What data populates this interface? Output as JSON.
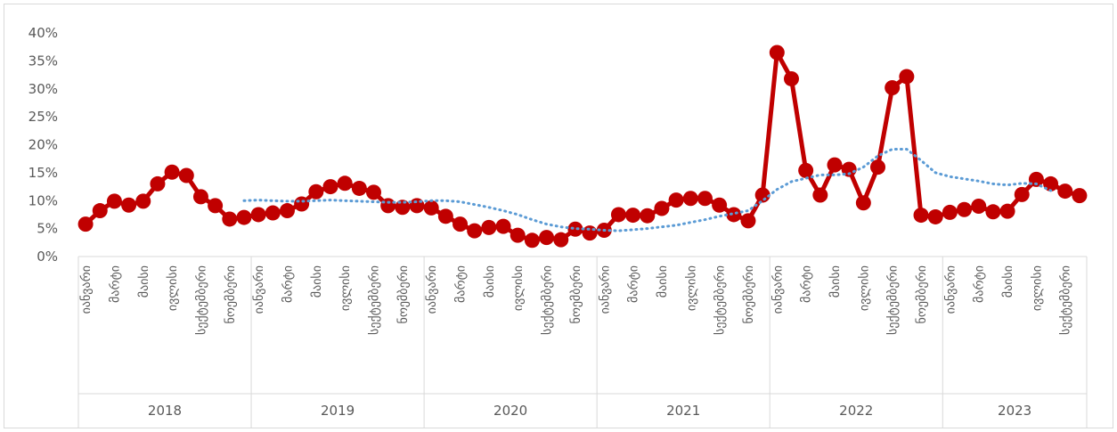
{
  "chart_data": {
    "type": "line",
    "y_axis": {
      "min": 0,
      "max": 0.4,
      "ticks": [
        "0%",
        "5%",
        "10%",
        "15%",
        "20%",
        "25%",
        "30%",
        "35%",
        "40%"
      ]
    },
    "months_shown": [
      "იანვარი",
      "მარტი",
      "მაისი",
      "ივლისი",
      "სექტემბერი",
      "ნოემბერი"
    ],
    "years": [
      {
        "label": "2018",
        "months": 12
      },
      {
        "label": "2019",
        "months": 12
      },
      {
        "label": "2020",
        "months": 12
      },
      {
        "label": "2021",
        "months": 12
      },
      {
        "label": "2022",
        "months": 12
      },
      {
        "label": "2023",
        "months": 10
      }
    ],
    "series": [
      {
        "color": "#c00000",
        "values": [
          0.058,
          0.082,
          0.099,
          0.092,
          0.099,
          0.13,
          0.151,
          0.145,
          0.107,
          0.091,
          0.067,
          0.07,
          0.075,
          0.078,
          0.082,
          0.094,
          0.116,
          0.125,
          0.131,
          0.122,
          0.115,
          0.091,
          0.088,
          0.091,
          0.087,
          0.072,
          0.058,
          0.046,
          0.052,
          0.054,
          0.038,
          0.029,
          0.034,
          0.03,
          0.049,
          0.042,
          0.047,
          0.075,
          0.074,
          0.073,
          0.086,
          0.101,
          0.104,
          0.104,
          0.092,
          0.075,
          0.064,
          0.11,
          0.365,
          0.318,
          0.154,
          0.11,
          0.164,
          0.156,
          0.096,
          0.16,
          0.302,
          0.322,
          0.074,
          0.071,
          0.079,
          0.084,
          0.09,
          0.08,
          0.081,
          0.111,
          0.138,
          0.13,
          0.117,
          0.109
        ]
      },
      {
        "color": "#5b9bd5",
        "style": "dotted",
        "start_index": 11,
        "values": [
          0.1,
          0.101,
          0.1,
          0.099,
          0.099,
          0.1,
          0.101,
          0.1,
          0.099,
          0.098,
          0.097,
          0.097,
          0.098,
          0.1,
          0.1,
          0.098,
          0.093,
          0.088,
          0.082,
          0.075,
          0.066,
          0.058,
          0.053,
          0.05,
          0.049,
          0.047,
          0.046,
          0.048,
          0.05,
          0.053,
          0.056,
          0.061,
          0.066,
          0.072,
          0.077,
          0.082,
          0.1,
          0.12,
          0.134,
          0.14,
          0.146,
          0.146,
          0.148,
          0.16,
          0.18,
          0.192,
          0.192,
          0.172,
          0.15,
          0.143,
          0.139,
          0.135,
          0.13,
          0.128,
          0.131,
          0.13,
          0.118
        ]
      }
    ],
    "grid": false,
    "legend": "none"
  }
}
